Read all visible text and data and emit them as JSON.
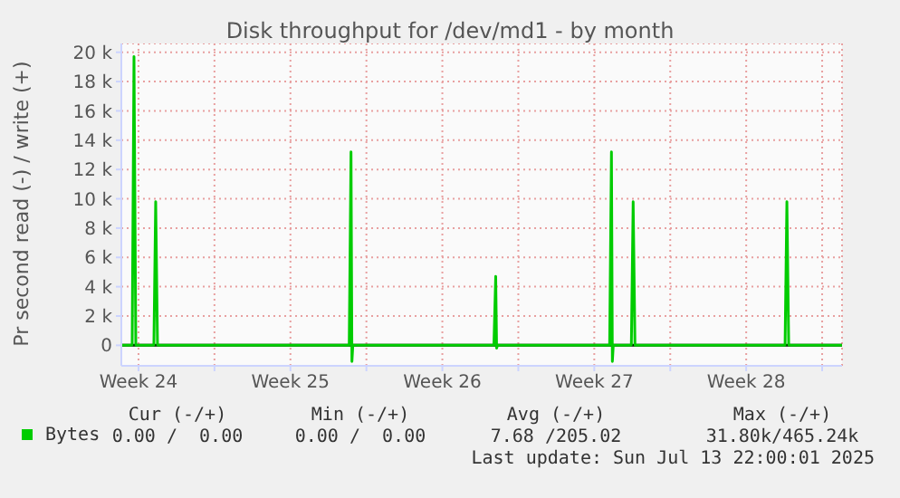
{
  "chart_data": {
    "type": "line",
    "title": "Disk throughput for /dev/md1 - by month",
    "ylabel": "Pr second read (-) / write (+)",
    "x": [
      "2025-06-10T17:00",
      "2025-06-11T05:00",
      "2025-06-11T07:00",
      "2025-06-11T09:00",
      "2025-06-12T05:00",
      "2025-06-12T07:00",
      "2025-06-12T09:00",
      "2025-06-21T05:00",
      "2025-06-21T07:00",
      "2025-06-21T08:00",
      "2025-06-21T09:00",
      "2025-06-27T21:00",
      "2025-06-27T23:00",
      "2025-06-28T00:00",
      "2025-06-28T01:00",
      "2025-07-03T05:00",
      "2025-07-03T07:00",
      "2025-07-03T08:00",
      "2025-07-03T09:00",
      "2025-07-04T05:00",
      "2025-07-04T07:00",
      "2025-07-04T09:00",
      "2025-07-11T07:00",
      "2025-07-11T09:00",
      "2025-07-11T11:00",
      "2025-07-13T22:00"
    ],
    "series": [
      {
        "name": "Bytes",
        "color": "#00cc00",
        "values": [
          0,
          0,
          19700,
          0,
          0,
          9800,
          0,
          0,
          13200,
          -1100,
          0,
          0,
          4700,
          -200,
          0,
          0,
          13200,
          -1100,
          0,
          0,
          9800,
          0,
          0,
          9800,
          0,
          0
        ]
      }
    ],
    "xlim": [
      "2025-06-10T17:00",
      "2025-07-13T22:00"
    ],
    "xticks": [
      {
        "value": "2025-06-11T12:00",
        "label": "Week 24"
      },
      {
        "value": "2025-06-15",
        "label": null
      },
      {
        "value": "2025-06-18T12:00",
        "label": "Week 25"
      },
      {
        "value": "2025-06-22",
        "label": null
      },
      {
        "value": "2025-06-25T12:00",
        "label": "Week 26"
      },
      {
        "value": "2025-06-29",
        "label": null
      },
      {
        "value": "2025-07-02T12:00",
        "label": "Week 27"
      },
      {
        "value": "2025-07-06",
        "label": null
      },
      {
        "value": "2025-07-09T12:00",
        "label": "Week 28"
      },
      {
        "value": "2025-07-13",
        "label": null
      }
    ],
    "ylim": [
      -1400,
      20600
    ],
    "yticks": [
      {
        "value": 0,
        "label": "0"
      },
      {
        "value": 2000,
        "label": "2 k"
      },
      {
        "value": 4000,
        "label": "4 k"
      },
      {
        "value": 6000,
        "label": "6 k"
      },
      {
        "value": 8000,
        "label": "8 k"
      },
      {
        "value": 10000,
        "label": "10 k"
      },
      {
        "value": 12000,
        "label": "12 k"
      },
      {
        "value": 14000,
        "label": "14 k"
      },
      {
        "value": 16000,
        "label": "16 k"
      },
      {
        "value": 18000,
        "label": "18 k"
      },
      {
        "value": 20000,
        "label": "20 k"
      }
    ],
    "ref_lines": [
      {
        "axis": "y",
        "value": 0,
        "color": "#000000"
      }
    ],
    "grid": true,
    "legend": "bottom",
    "marker": "none",
    "line_style": "solid",
    "annotations": [
      "Cur (-/+)",
      "Min (-/+)",
      "Avg (-/+)",
      "Max (-/+)",
      "0.00 /  0.00",
      "0.00 /  0.00",
      "7.68 /205.02",
      "31.80k/465.24k",
      "Last update: Sun Jul 13 22:00:01 2025"
    ]
  }
}
